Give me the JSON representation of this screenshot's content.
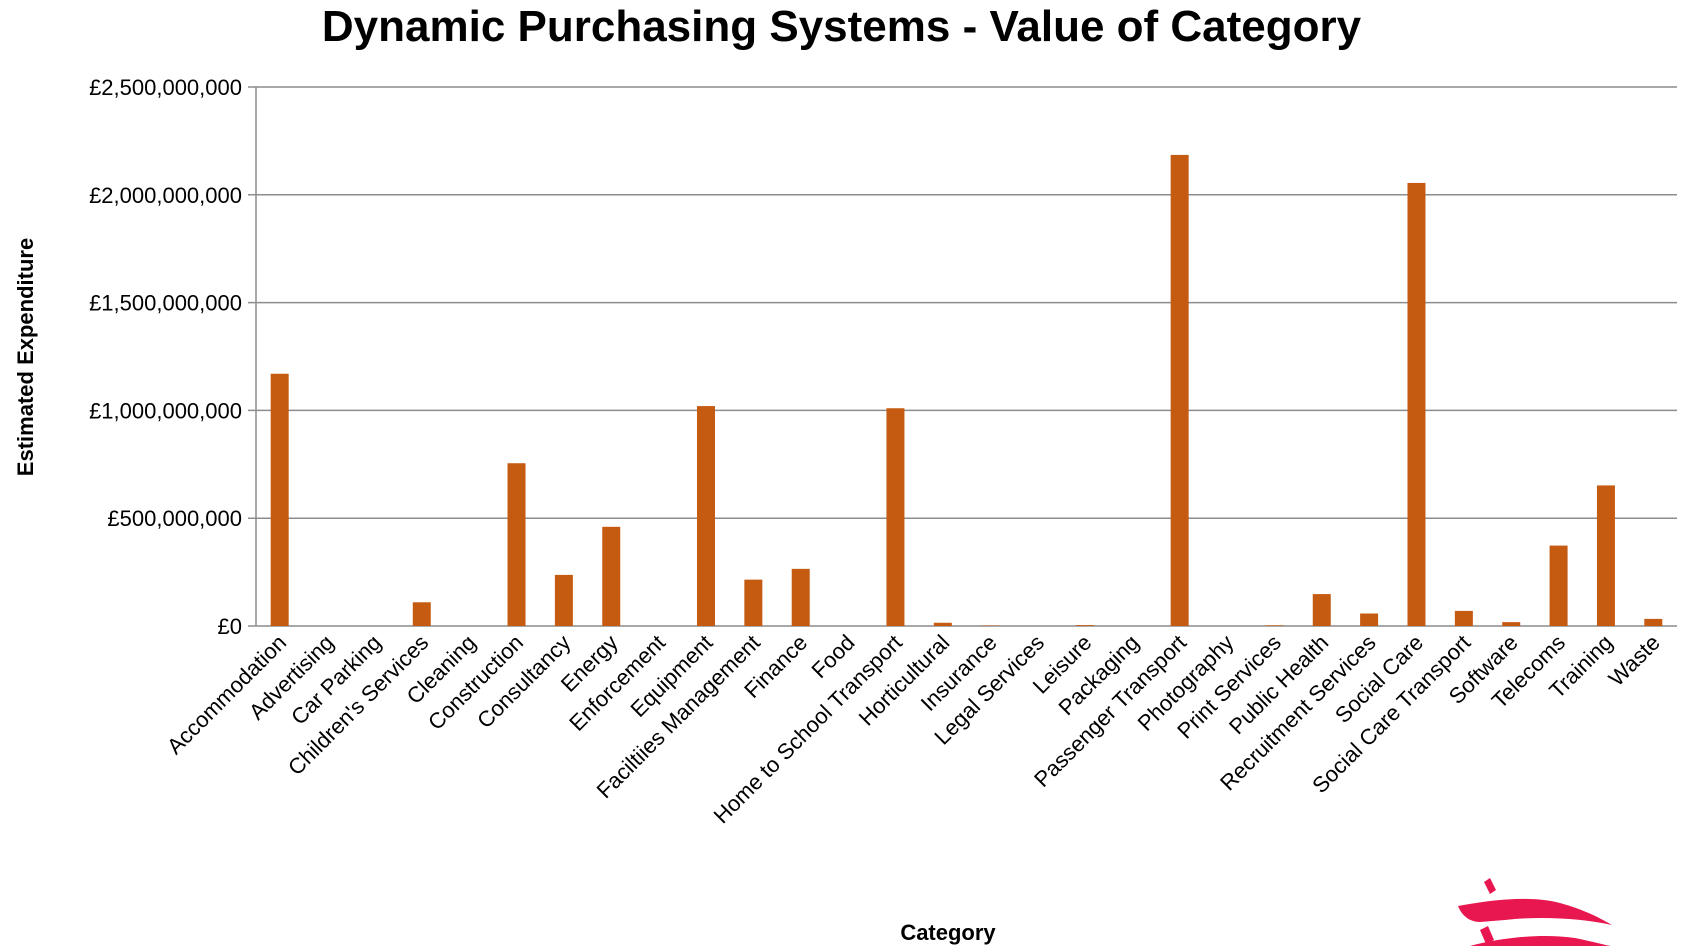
{
  "chart_data": {
    "type": "bar",
    "title": "Dynamic Purchasing Systems - Value of Category",
    "xlabel": "Category",
    "ylabel": "Estimated Expenditure",
    "ylim": [
      0,
      2500000000
    ],
    "yticks": [
      {
        "value": 0,
        "label": "£0"
      },
      {
        "value": 500000000,
        "label": "£500,000,000"
      },
      {
        "value": 1000000000,
        "label": "£1,000,000,000"
      },
      {
        "value": 1500000000,
        "label": "£1,500,000,000"
      },
      {
        "value": 2000000000,
        "label": "£2,000,000,000"
      },
      {
        "value": 2500000000,
        "label": "£2,500,000,000"
      }
    ],
    "grid": true,
    "legend": "none",
    "bar_color": "#C55A11",
    "categories": [
      "Accommodation",
      "Advertising",
      "Car Parking",
      "Children's Services",
      "Cleaning",
      "Construction",
      "Consultancy",
      "Energy",
      "Enforcement",
      "Equipment",
      "Faciltiies Management",
      "Finance",
      "Food",
      "Home to School Transport",
      "Horticultural",
      "Insurance",
      "Legal Services",
      "Leisure",
      "Packaging",
      "Passenger Transport",
      "Photography",
      "Print Services",
      "Public Health",
      "Recruitment Services",
      "Social Care",
      "Social Care Transport",
      "Software",
      "Telecoms",
      "Training",
      "Waste"
    ],
    "values": [
      1170000000,
      0,
      0,
      110000000,
      0,
      755000000,
      237000000,
      460000000,
      0,
      1020000000,
      215000000,
      265000000,
      0,
      1010000000,
      15000000,
      2000000,
      0,
      4000000,
      0,
      2185000000,
      0,
      3000000,
      148000000,
      58000000,
      2055000000,
      70000000,
      18000000,
      373000000,
      652000000,
      33000000
    ]
  },
  "logo": {
    "name": "council-crest-logo",
    "color": "#E8174F"
  }
}
